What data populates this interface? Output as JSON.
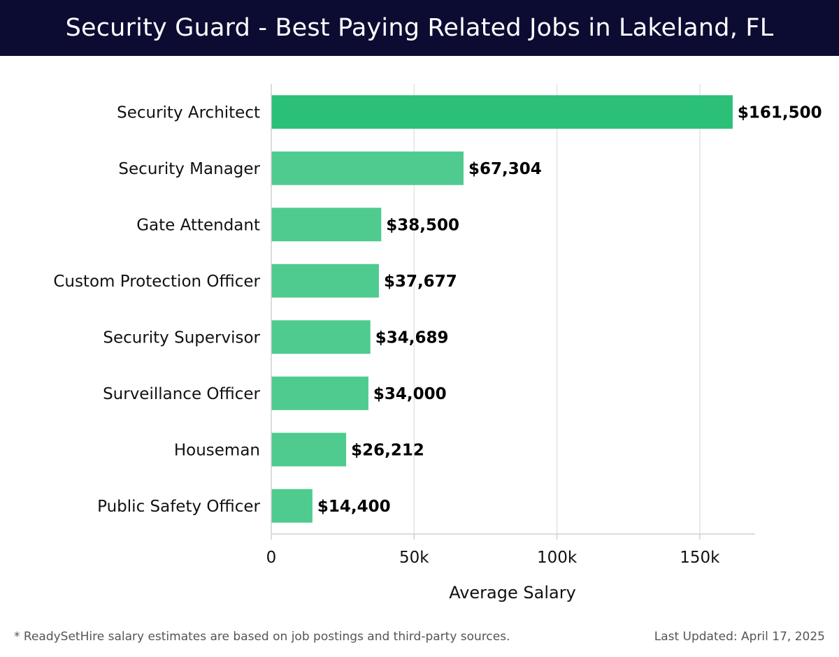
{
  "header": {
    "title": "Security Guard - Best Paying Related Jobs in Lakeland, FL"
  },
  "chart_data": {
    "type": "bar",
    "orientation": "horizontal",
    "title": "Security Guard - Best Paying Related Jobs in Lakeland, FL",
    "categories": [
      "Security Architect",
      "Security Manager",
      "Gate Attendant",
      "Custom Protection Officer",
      "Security Supervisor",
      "Surveillance Officer",
      "Houseman",
      "Public Safety Officer"
    ],
    "values": [
      161500,
      67304,
      38500,
      37677,
      34689,
      34000,
      26212,
      14400
    ],
    "value_labels": [
      "$161,500",
      "$67,304",
      "$38,500",
      "$37,677",
      "$34,689",
      "$34,000",
      "$26,212",
      "$14,400"
    ],
    "xlabel": "Average Salary",
    "ylabel": "",
    "xlim": [
      0,
      170000
    ],
    "xticks": [
      0,
      50000,
      100000,
      150000
    ],
    "xtick_labels": [
      "0",
      "50k",
      "100k",
      "150k"
    ],
    "grid": true,
    "colors": {
      "top_bar": "#2bbf77",
      "bars": "#4fcb8f",
      "grid": "#e3e3e3",
      "axis": "#d0d0d0"
    }
  },
  "footer": {
    "note": "* ReadySetHire salary estimates are based on job postings and third-party sources.",
    "updated": "Last Updated: April 17, 2025"
  }
}
